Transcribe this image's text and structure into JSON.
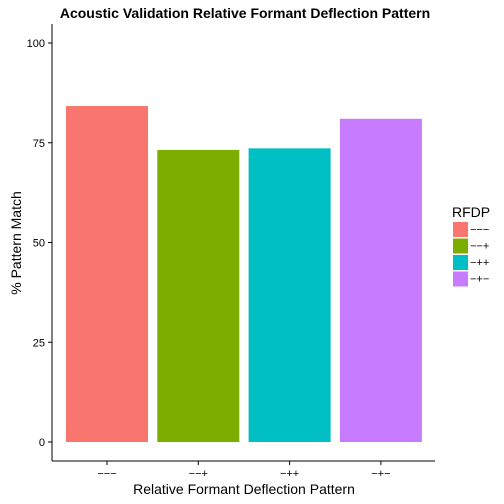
{
  "chart_data": {
    "type": "bar",
    "title": "Acoustic Validation Relative Formant Deflection Pattern",
    "xlabel": "Relative Formant Deflection Pattern",
    "ylabel": "% Pattern Match",
    "categories": [
      "−−−",
      "−−+",
      "−++",
      "−+−"
    ],
    "values": [
      84.2,
      73.2,
      73.6,
      81.0
    ],
    "colors": [
      "#F8766D",
      "#7CAE00",
      "#00BFC4",
      "#C77CFF"
    ],
    "ylim": [
      0,
      100
    ],
    "yticks": [
      0,
      25,
      50,
      75,
      100
    ],
    "grid": false,
    "legend": {
      "title": "RFDP",
      "position": "right",
      "entries": [
        "−−−",
        "−−+",
        "−++",
        "−+−"
      ]
    }
  }
}
